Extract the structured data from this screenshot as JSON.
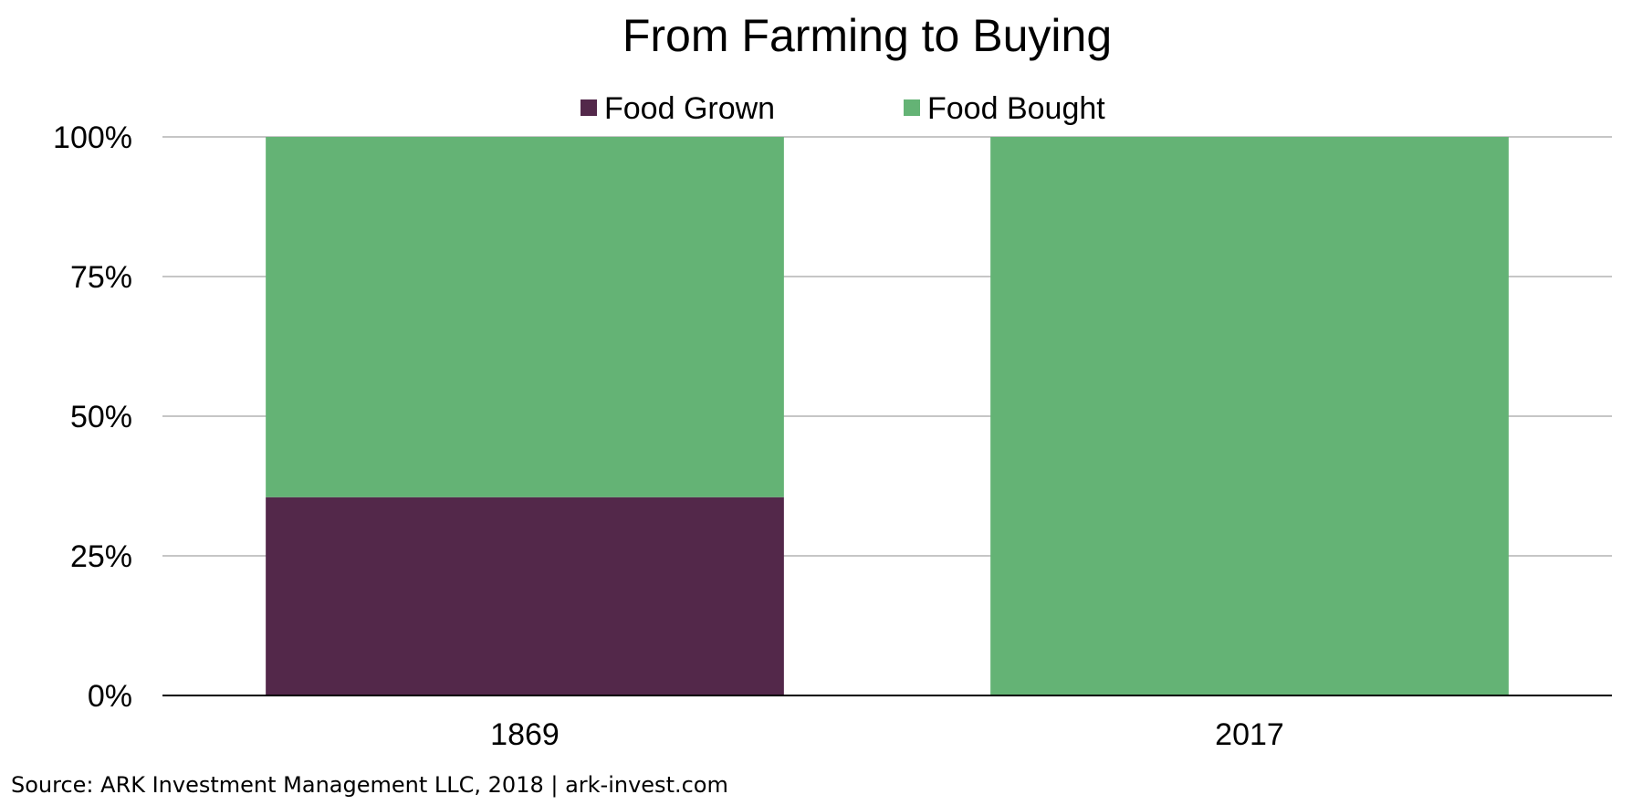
{
  "chart_data": {
    "type": "bar",
    "stacked": true,
    "title": "From Farming to Buying",
    "categories": [
      "1869",
      "2017"
    ],
    "series": [
      {
        "name": "Food Grown",
        "values": [
          35.5,
          0
        ],
        "color": "#53284a"
      },
      {
        "name": "Food Bought",
        "values": [
          64.5,
          100
        ],
        "color": "#64b375"
      }
    ],
    "y_ticks": [
      {
        "value": 0,
        "label": "0%"
      },
      {
        "value": 25,
        "label": "25%"
      },
      {
        "value": 50,
        "label": "50%"
      },
      {
        "value": 75,
        "label": "75%"
      },
      {
        "value": 100,
        "label": "100%"
      }
    ],
    "ylim": [
      0,
      100
    ],
    "xlabel": "",
    "ylabel": "",
    "grid": true,
    "legend_position": "top-center",
    "source": "Source: ARK Investment Management LLC, 2018 | ark-invest.com"
  }
}
